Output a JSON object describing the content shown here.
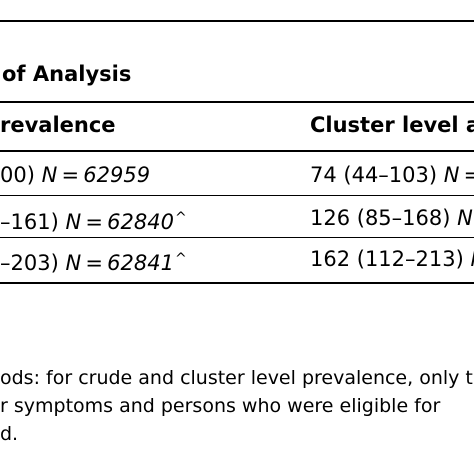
{
  "table": {
    "group_header": "of Analysis",
    "col_headers": [
      "revalence",
      "Cluster level a"
    ],
    "rows": [
      {
        "c1_ci": "00)",
        "c1_n_label": "N = 62959",
        "c1_mark": "",
        "c2_ci": "74 (44–103)",
        "c2_n_label": "N = ("
      },
      {
        "c1_ci": "–161)",
        "c1_n_label": "N = 62840",
        "c1_mark": "^",
        "c2_ci": "126 (85–168)",
        "c2_n_label": "N ="
      },
      {
        "c1_ci": "–203)",
        "c1_n_label": "N = 62841",
        "c1_mark": "^",
        "c2_ci": "162 (112–213)",
        "c2_n_label": "N  "
      }
    ]
  },
  "footnote": {
    "lines": [
      "ods: for crude and cluster level prevalence, only t",
      "r symptoms and persons who were eligible for",
      "d."
    ]
  }
}
